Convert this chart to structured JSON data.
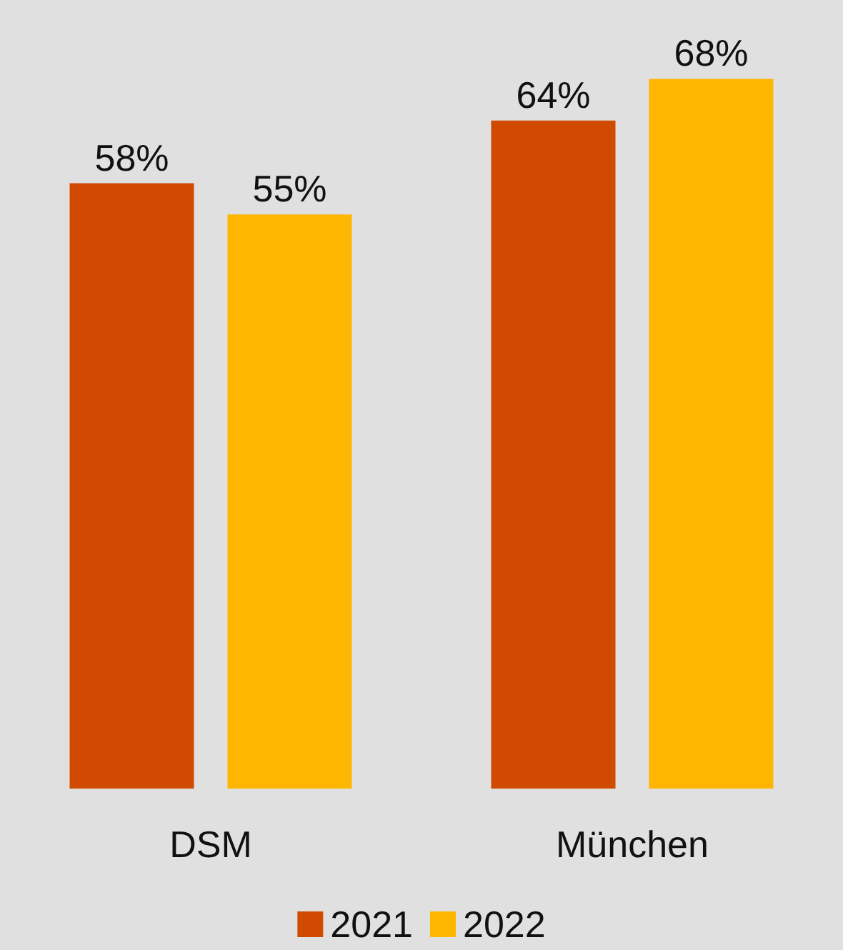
{
  "chart_data": {
    "type": "bar",
    "categories": [
      "DSM",
      "München"
    ],
    "series": [
      {
        "name": "2021",
        "color": "#d04a02",
        "values": [
          58,
          64
        ],
        "value_labels": [
          "58%",
          "64%"
        ]
      },
      {
        "name": "2022",
        "color": "#ffb600",
        "values": [
          55,
          68
        ],
        "value_labels": [
          "55%",
          "68%"
        ]
      }
    ],
    "legend": "bottom"
  }
}
